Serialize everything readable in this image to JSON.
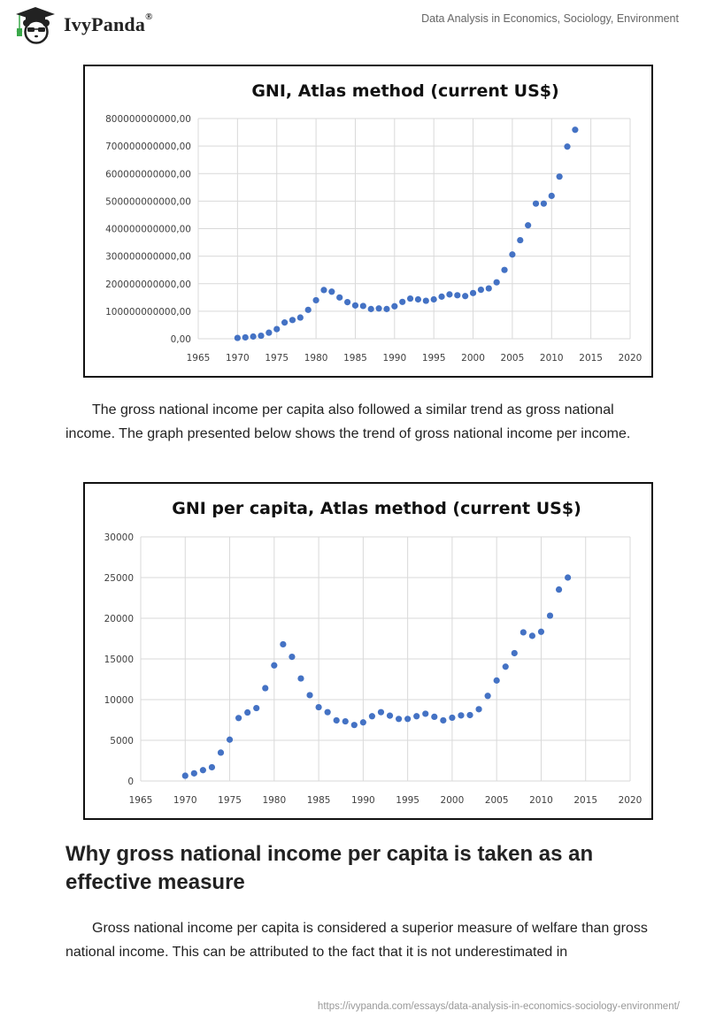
{
  "header": {
    "brand_name": "IvyPanda",
    "brand_mark": "®",
    "logo_icon": "panda-graduate-icon",
    "document_title": "Data Analysis in Economics, Sociology, Environment"
  },
  "paragraphs": {
    "intro": "The gross national income per capita also followed a similar trend as gross national income. The graph presented below shows the trend of gross national income per income.",
    "section_body": "Gross national income per capita is considered a superior measure of welfare than gross national income. This can be attributed to the fact that it is not underestimated in"
  },
  "section_heading": "Why gross national income per capita is taken as an effective measure",
  "footer": {
    "url": "https://ivypanda.com/essays/data-analysis-in-economics-sociology-environment/"
  },
  "colors": {
    "marker": "#4472C4",
    "grid": "#d9d9d9",
    "text": "#222222",
    "muted": "#999999"
  },
  "chart_data": [
    {
      "type": "scatter",
      "title": "GNI, Atlas method (current US$)",
      "xlabel": "",
      "ylabel": "",
      "xlim": [
        1965,
        2020
      ],
      "ylim": [
        0,
        800000000000
      ],
      "x_ticks": [
        "1965",
        "1970",
        "1975",
        "1980",
        "1985",
        "1990",
        "1995",
        "2000",
        "2005",
        "2010",
        "2015",
        "2020"
      ],
      "y_ticks": [
        "0,00",
        "100000000000,00",
        "200000000000,00",
        "300000000000,00",
        "400000000000,00",
        "500000000000,00",
        "600000000000,00",
        "700000000000,00",
        "800000000000,00"
      ],
      "grid": true,
      "legend": "none",
      "x": [
        1970,
        1971,
        1972,
        1973,
        1974,
        1975,
        1976,
        1977,
        1978,
        1979,
        1980,
        1981,
        1982,
        1983,
        1984,
        1985,
        1986,
        1987,
        1988,
        1989,
        1990,
        1991,
        1992,
        1993,
        1994,
        1995,
        1996,
        1997,
        1998,
        1999,
        2000,
        2001,
        2002,
        2003,
        2004,
        2005,
        2006,
        2007,
        2008,
        2009,
        2010,
        2011,
        2012,
        2013
      ],
      "y": [
        3000000000,
        5000000000,
        8000000000,
        11000000000,
        22000000000,
        35000000000,
        59000000000,
        68000000000,
        77000000000,
        105000000000,
        140000000000,
        177000000000,
        171000000000,
        150000000000,
        133000000000,
        121000000000,
        119000000000,
        108000000000,
        110000000000,
        108000000000,
        118000000000,
        134000000000,
        146000000000,
        143000000000,
        138000000000,
        143000000000,
        153000000000,
        161000000000,
        158000000000,
        155000000000,
        166000000000,
        178000000000,
        183000000000,
        205000000000,
        250000000000,
        306000000000,
        358000000000,
        412000000000,
        491000000000,
        491000000000,
        519000000000,
        589000000000,
        698000000000,
        759000000000
      ]
    },
    {
      "type": "scatter",
      "title": "GNI per capita, Atlas method (current US$)",
      "xlabel": "",
      "ylabel": "",
      "xlim": [
        1965,
        2020
      ],
      "ylim": [
        0,
        30000
      ],
      "x_ticks": [
        "1965",
        "1970",
        "1975",
        "1980",
        "1985",
        "1990",
        "1995",
        "2000",
        "2005",
        "2010",
        "2015",
        "2020"
      ],
      "y_ticks": [
        "0",
        "5000",
        "10000",
        "15000",
        "20000",
        "25000",
        "30000"
      ],
      "grid": true,
      "legend": "none",
      "x": [
        1970,
        1971,
        1972,
        1973,
        1974,
        1975,
        1976,
        1977,
        1978,
        1979,
        1980,
        1981,
        1982,
        1983,
        1984,
        1985,
        1986,
        1987,
        1988,
        1989,
        1990,
        1991,
        1992,
        1993,
        1994,
        1995,
        1996,
        1997,
        1998,
        1999,
        2000,
        2001,
        2002,
        2003,
        2004,
        2005,
        2006,
        2007,
        2008,
        2009,
        2010,
        2011,
        2012,
        2013
      ],
      "y": [
        650,
        940,
        1330,
        1690,
        3490,
        5080,
        7740,
        8420,
        8960,
        11410,
        14210,
        16800,
        15260,
        12600,
        10550,
        9070,
        8460,
        7450,
        7330,
        6880,
        7200,
        7960,
        8460,
        8030,
        7630,
        7630,
        7960,
        8270,
        7890,
        7450,
        7780,
        8060,
        8100,
        8820,
        10460,
        12350,
        14050,
        15710,
        18270,
        17840,
        18340,
        20320,
        23530,
        25000
      ]
    }
  ]
}
